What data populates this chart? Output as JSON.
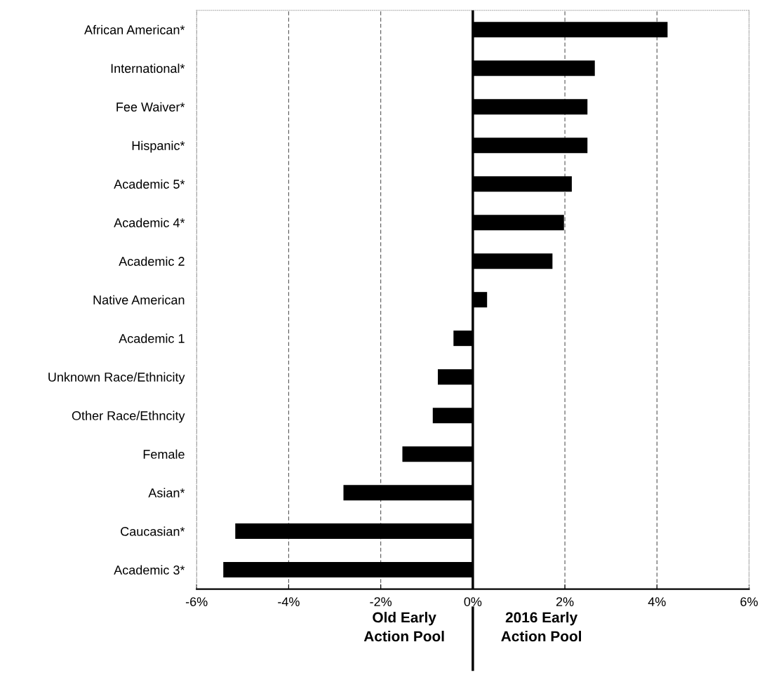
{
  "chart_data": {
    "type": "bar",
    "orientation": "horizontal",
    "categories": [
      "African American*",
      "International*",
      "Fee Waiver*",
      "Hispanic*",
      "Academic 5*",
      "Academic 4*",
      "Academic 2",
      "Native American",
      "Academic 1",
      "Unknown Race/Ethnicity",
      "Other Race/Ethncity",
      "Female",
      "Asian*",
      "Caucasian*",
      "Academic 3*"
    ],
    "values": [
      4.23,
      2.65,
      2.49,
      2.49,
      2.15,
      1.98,
      1.73,
      0.31,
      -0.42,
      -0.76,
      -0.87,
      -1.53,
      -2.81,
      -5.16,
      -5.42
    ],
    "color": "#000000",
    "xlim": [
      -6,
      6
    ],
    "xticks": [
      {
        "value": -6,
        "label": "-6%"
      },
      {
        "value": -4,
        "label": "-4%"
      },
      {
        "value": -2,
        "label": "-2%"
      },
      {
        "value": 0,
        "label": "0%"
      },
      {
        "value": 2,
        "label": "2%"
      },
      {
        "value": 4,
        "label": "4%"
      },
      {
        "value": 6,
        "label": "6%"
      }
    ],
    "grid": "x",
    "ref_lines": [
      {
        "axis": "x",
        "value": 0,
        "color": "#000000"
      }
    ],
    "annotations": [
      "Old Early\nAction Pool",
      "2016 Early\nAction Pool"
    ]
  }
}
